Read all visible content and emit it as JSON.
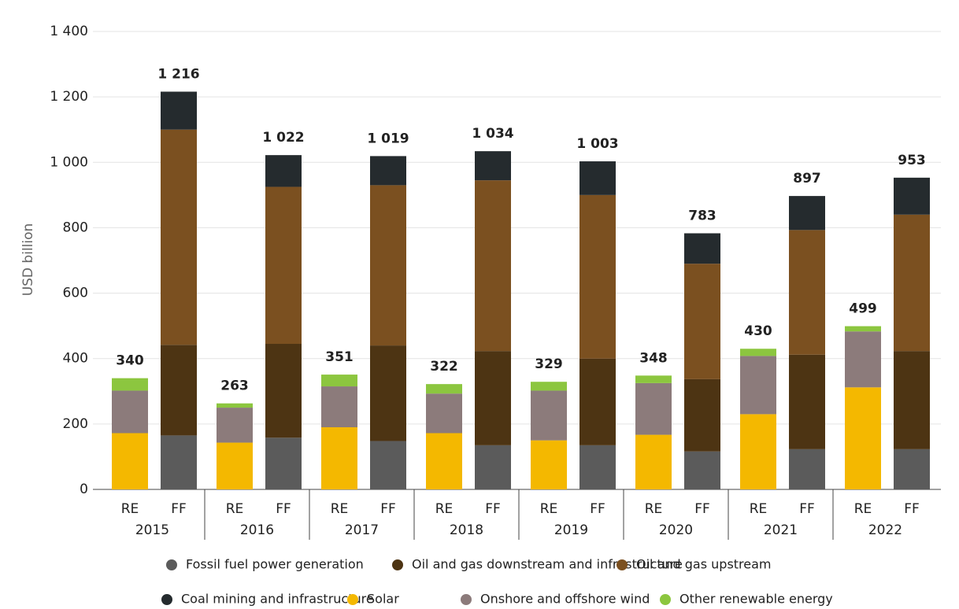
{
  "chart_data": {
    "type": "stacked_bar",
    "y_axis_label": "USD billion",
    "categories": [
      "RE",
      "FF",
      "RE",
      "FF",
      "RE",
      "FF",
      "RE",
      "FF",
      "RE",
      "FF",
      "RE",
      "FF",
      "RE",
      "FF",
      "RE",
      "FF"
    ],
    "groups": [
      "2015",
      "2016",
      "2017",
      "2018",
      "2019",
      "2020",
      "2021",
      "2022"
    ],
    "ylim": [
      0,
      1400
    ],
    "yticks": [
      0,
      200,
      400,
      600,
      800,
      {
        "value": 1000,
        "label": "1 000"
      },
      {
        "value": 1200,
        "label": "1 200"
      },
      {
        "value": 1400,
        "label": "1 400"
      }
    ],
    "grid": true,
    "series": [
      {
        "name": "Fossil fuel power generation",
        "color": "#5b5b5b",
        "values": [
          null,
          165,
          null,
          158,
          null,
          148,
          null,
          135,
          null,
          135,
          null,
          116,
          null,
          123,
          null,
          123
        ]
      },
      {
        "name": "Oil and gas downstream and infrastructure",
        "color": "#4d3413",
        "values": [
          null,
          277,
          null,
          287,
          null,
          292,
          null,
          288,
          null,
          265,
          null,
          221,
          null,
          289,
          null,
          300
        ]
      },
      {
        "name": "Oil and gas upstream",
        "color": "#7b5020",
        "values": [
          null,
          658,
          null,
          480,
          null,
          490,
          null,
          522,
          null,
          500,
          null,
          353,
          null,
          381,
          null,
          417
        ]
      },
      {
        "name": "Coal mining and infrastructure",
        "color": "#252b2e",
        "values": [
          null,
          116,
          null,
          97,
          null,
          89,
          null,
          89,
          null,
          103,
          null,
          93,
          null,
          104,
          null,
          113
        ]
      },
      {
        "name": "Solar",
        "color": "#f4b800",
        "values": [
          172,
          null,
          143,
          null,
          190,
          null,
          172,
          null,
          150,
          null,
          167,
          null,
          230,
          null,
          312,
          null
        ]
      },
      {
        "name": "Onshore and offshore wind",
        "color": "#8c7b7b",
        "values": [
          130,
          null,
          107,
          null,
          125,
          null,
          121,
          null,
          152,
          null,
          158,
          null,
          178,
          null,
          171,
          null
        ]
      },
      {
        "name": "Other renewable energy",
        "color": "#8cc63f",
        "values": [
          38,
          null,
          13,
          null,
          36,
          null,
          29,
          null,
          27,
          null,
          23,
          null,
          22,
          null,
          16,
          null
        ]
      }
    ],
    "totals": {
      "values": [
        340,
        1216,
        263,
        1022,
        351,
        1019,
        322,
        1034,
        329,
        1003,
        348,
        783,
        430,
        897,
        499,
        953
      ],
      "value_labels": [
        "340",
        "1 216",
        "263",
        "1 022",
        "351",
        "1 019",
        "322",
        "1 034",
        "329",
        "1 003",
        "348",
        "783",
        "430",
        "897",
        "499",
        "953"
      ]
    }
  }
}
